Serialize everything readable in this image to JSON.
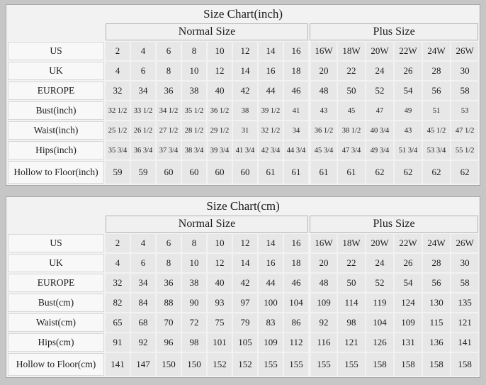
{
  "page": {
    "background": "#c6c6c6",
    "table_bg": "#f2f2f2",
    "label_cell_bg": "#f8f8f8",
    "data_cell_bg": "#e7e7e7",
    "grid_line": "#b3b3b3"
  },
  "chart_data": [
    {
      "type": "table",
      "title": "Size Chart(inch)",
      "groups": [
        {
          "label": "Normal Size",
          "span": 8
        },
        {
          "label": "Plus Size",
          "span": 6
        }
      ],
      "column_sizes": [
        "2",
        "4",
        "6",
        "8",
        "10",
        "12",
        "14",
        "16",
        "16W",
        "18W",
        "20W",
        "22W",
        "24W",
        "26W"
      ],
      "rows": [
        {
          "label": "US",
          "values": [
            "2",
            "4",
            "6",
            "8",
            "10",
            "12",
            "14",
            "16",
            "16W",
            "18W",
            "20W",
            "22W",
            "24W",
            "26W"
          ]
        },
        {
          "label": "UK",
          "values": [
            "4",
            "6",
            "8",
            "10",
            "12",
            "14",
            "16",
            "18",
            "20",
            "22",
            "24",
            "26",
            "28",
            "30"
          ]
        },
        {
          "label": "EUROPE",
          "values": [
            "32",
            "34",
            "36",
            "38",
            "40",
            "42",
            "44",
            "46",
            "48",
            "50",
            "52",
            "54",
            "56",
            "58"
          ]
        },
        {
          "label": "Bust(inch)",
          "values": [
            "32 1/2",
            "33 1/2",
            "34 1/2",
            "35 1/2",
            "36 1/2",
            "38",
            "39 1/2",
            "41",
            "43",
            "45",
            "47",
            "49",
            "51",
            "53"
          ]
        },
        {
          "label": "Waist(inch)",
          "values": [
            "25 1/2",
            "26 1/2",
            "27 1/2",
            "28 1/2",
            "29 1/2",
            "31",
            "32 1/2",
            "34",
            "36 1/2",
            "38 1/2",
            "40 3/4",
            "43",
            "45 1/2",
            "47 1/2"
          ]
        },
        {
          "label": "Hips(inch)",
          "values": [
            "35 3/4",
            "36 3/4",
            "37 3/4",
            "38 3/4",
            "39 3/4",
            "41 3/4",
            "42 3/4",
            "44 3/4",
            "45 3/4",
            "47 3/4",
            "49 3/4",
            "51 3/4",
            "53 3/4",
            "55 1/2"
          ]
        },
        {
          "label": "Hollow to Floor(inch)",
          "values": [
            "59",
            "59",
            "60",
            "60",
            "60",
            "60",
            "61",
            "61",
            "61",
            "61",
            "62",
            "62",
            "62",
            "62"
          ]
        }
      ]
    },
    {
      "type": "table",
      "title": "Size Chart(cm)",
      "groups": [
        {
          "label": "Normal Size",
          "span": 8
        },
        {
          "label": "Plus Size",
          "span": 6
        }
      ],
      "column_sizes": [
        "2",
        "4",
        "6",
        "8",
        "10",
        "12",
        "14",
        "16",
        "16W",
        "18W",
        "20W",
        "22W",
        "24W",
        "26W"
      ],
      "rows": [
        {
          "label": "US",
          "values": [
            "2",
            "4",
            "6",
            "8",
            "10",
            "12",
            "14",
            "16",
            "16W",
            "18W",
            "20W",
            "22W",
            "24W",
            "26W"
          ]
        },
        {
          "label": "UK",
          "values": [
            "4",
            "6",
            "8",
            "10",
            "12",
            "14",
            "16",
            "18",
            "20",
            "22",
            "24",
            "26",
            "28",
            "30"
          ]
        },
        {
          "label": "EUROPE",
          "values": [
            "32",
            "34",
            "36",
            "38",
            "40",
            "42",
            "44",
            "46",
            "48",
            "50",
            "52",
            "54",
            "56",
            "58"
          ]
        },
        {
          "label": "Bust(cm)",
          "values": [
            "82",
            "84",
            "88",
            "90",
            "93",
            "97",
            "100",
            "104",
            "109",
            "114",
            "119",
            "124",
            "130",
            "135"
          ]
        },
        {
          "label": "Waist(cm)",
          "values": [
            "65",
            "68",
            "70",
            "72",
            "75",
            "79",
            "83",
            "86",
            "92",
            "98",
            "104",
            "109",
            "115",
            "121"
          ]
        },
        {
          "label": "Hips(cm)",
          "values": [
            "91",
            "92",
            "96",
            "98",
            "101",
            "105",
            "109",
            "112",
            "116",
            "121",
            "126",
            "131",
            "136",
            "141"
          ]
        },
        {
          "label": "Hollow to Floor(cm)",
          "values": [
            "141",
            "147",
            "150",
            "150",
            "152",
            "152",
            "155",
            "155",
            "155",
            "155",
            "158",
            "158",
            "158",
            "158"
          ]
        }
      ]
    }
  ]
}
